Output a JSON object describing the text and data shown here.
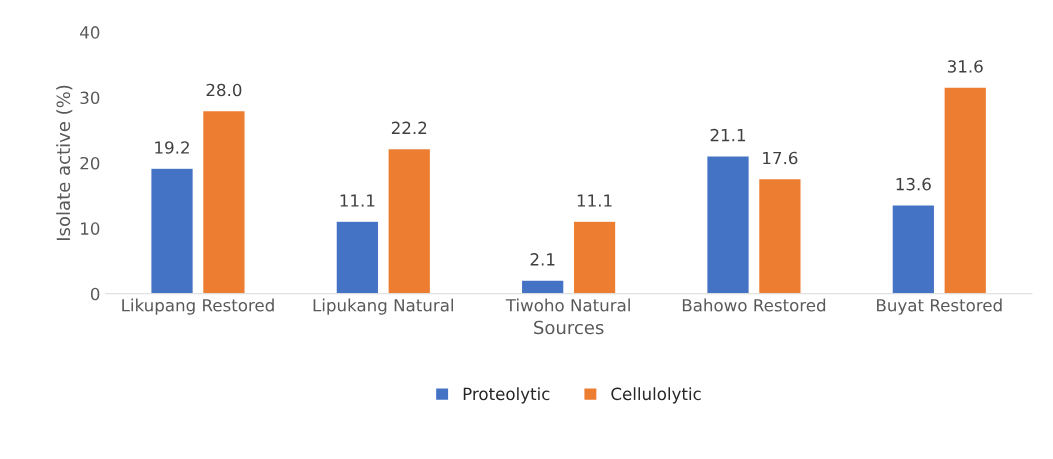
{
  "chart_data": {
    "type": "bar",
    "xlabel": "Sources",
    "ylabel": "Isolate active (%)",
    "categories": [
      "Likupang Restored",
      "Lipukang Natural",
      "Tiwoho Natural",
      "Bahowo Restored",
      "Buyat Restored"
    ],
    "series": [
      {
        "name": "Proteolytic",
        "color": "#4472c4",
        "values": [
          19.2,
          11.1,
          2.1,
          21.1,
          13.6
        ],
        "value_labels": [
          "19.2",
          "11.1",
          "2.1",
          "21.1",
          "13.6"
        ]
      },
      {
        "name": "Cellulolytic",
        "color": "#ed7d31",
        "values": [
          28.0,
          22.2,
          11.1,
          17.6,
          31.6
        ],
        "value_labels": [
          "28.0",
          "22.2",
          "11.1",
          "17.6",
          "31.6"
        ]
      }
    ],
    "ylim": [
      0,
      40
    ],
    "yticks": [
      0,
      10,
      20,
      30,
      40
    ],
    "grid": false,
    "legend": "bottom"
  }
}
